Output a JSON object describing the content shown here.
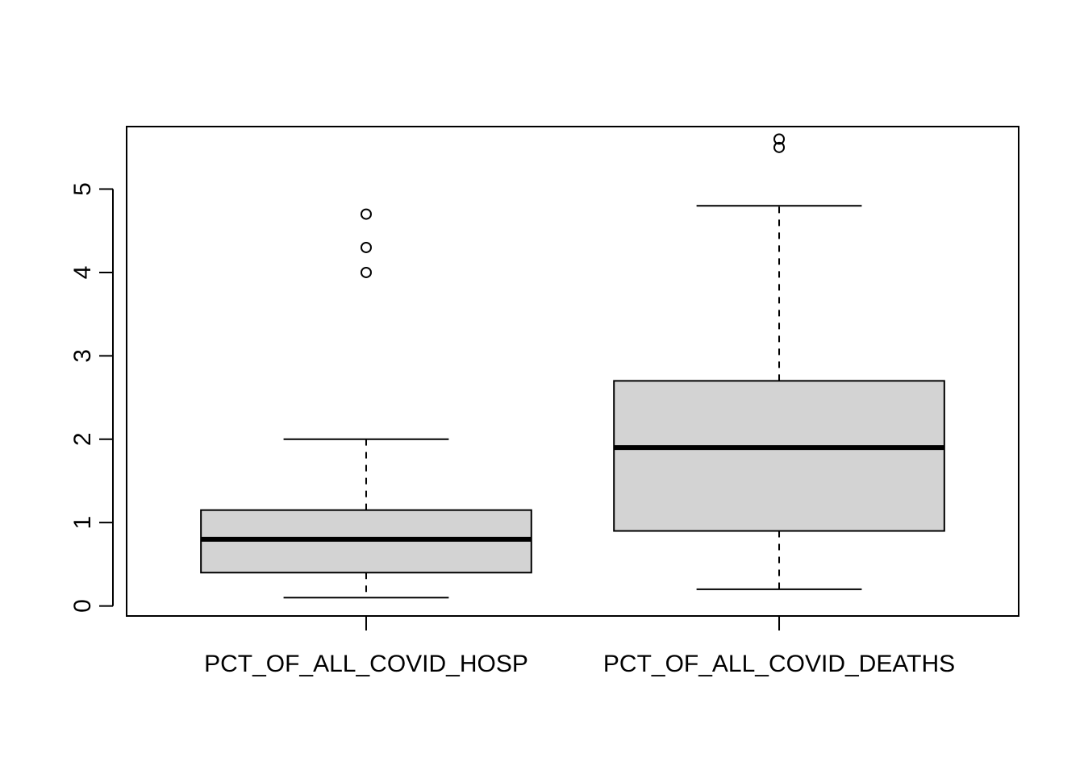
{
  "chart_data": {
    "type": "box",
    "title": "",
    "xlabel": "",
    "ylabel": "",
    "ylim": [
      -0.12,
      5.75
    ],
    "y_ticks": [
      "0",
      "1",
      "2",
      "3",
      "4",
      "5"
    ],
    "categories": [
      "PCT_OF_ALL_COVID_HOSP",
      "PCT_OF_ALL_COVID_DEATHS"
    ],
    "boxes": [
      {
        "name": "PCT_OF_ALL_COVID_HOSP",
        "whisker_low": 0.1,
        "q1": 0.4,
        "median": 0.8,
        "q3": 1.15,
        "whisker_high": 2.0,
        "outliers": [
          4.0,
          4.3,
          4.7
        ]
      },
      {
        "name": "PCT_OF_ALL_COVID_DEATHS",
        "whisker_low": 0.2,
        "q1": 0.9,
        "median": 1.9,
        "q3": 2.7,
        "whisker_high": 4.8,
        "outliers": [
          5.5,
          5.6
        ]
      }
    ],
    "box_fill": "#d3d3d3",
    "line_color": "#000000",
    "grid": false
  }
}
